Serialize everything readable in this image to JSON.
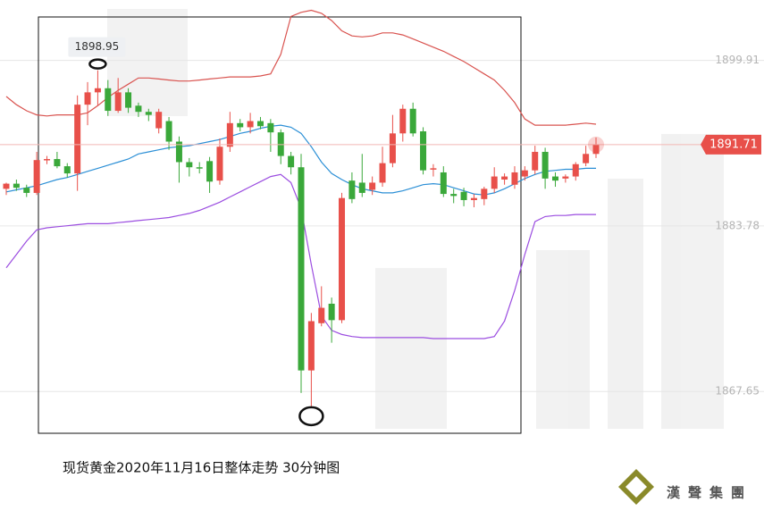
{
  "chart_data": {
    "type": "candlestick",
    "caption": "现货黄金2020年11月16日整体走势  30分钟图",
    "logo": "漢聲集團",
    "up_color": "#e8504a",
    "down_color": "#3aa83a",
    "ylim": [
      1856,
      1905.8
    ],
    "yticks": [
      1899.91,
      1883.78,
      1867.65
    ],
    "grid": true,
    "open": [
      1887.4,
      1887.9,
      1887.5,
      1887.0,
      1890.2,
      1890.3,
      1889.6,
      1888.9,
      1895.6,
      1896.8,
      1897.2,
      1895.0,
      1896.8,
      1895.5,
      1894.9,
      1893.3,
      1894.0,
      1892.0,
      1890.0,
      1889.5,
      1890.1,
      1888.2,
      1891.5,
      1893.8,
      1893.4,
      1894.0,
      1893.8,
      1892.9,
      1890.6,
      1889.5,
      1869.7,
      1874.3,
      1876.2,
      1874.6,
      1888.2,
      1888.0,
      1887.3,
      1888.0,
      1889.9,
      1892.8,
      1895.2,
      1893.0,
      1889.3,
      1889.0,
      1886.9,
      1887.1,
      1886.3,
      1886.4,
      1887.4,
      1888.3,
      1887.8,
      1888.6,
      1889.2,
      1891.0,
      1888.6,
      1888.4,
      1888.6,
      1889.9,
      1890.8
    ],
    "high": [
      1888.0,
      1888.3,
      1887.8,
      1891.0,
      1890.6,
      1891.0,
      1889.9,
      1896.5,
      1897.8,
      1898.95,
      1898.0,
      1898.2,
      1897.2,
      1895.8,
      1895.2,
      1895.2,
      1894.4,
      1892.5,
      1890.4,
      1890.0,
      1890.5,
      1892.3,
      1894.9,
      1894.2,
      1894.8,
      1894.4,
      1894.2,
      1893.2,
      1891.0,
      1890.8,
      1875.3,
      1877.9,
      1876.8,
      1887.0,
      1889.0,
      1890.8,
      1888.6,
      1891.5,
      1894.6,
      1895.6,
      1895.8,
      1893.4,
      1889.8,
      1889.6,
      1887.4,
      1887.5,
      1886.9,
      1887.6,
      1889.5,
      1888.9,
      1889.6,
      1889.6,
      1891.6,
      1891.4,
      1889.0,
      1888.8,
      1890.0,
      1891.6,
      1892.4
    ],
    "low": [
      1886.8,
      1887.2,
      1886.6,
      1886.8,
      1889.8,
      1889.4,
      1888.5,
      1887.2,
      1893.6,
      1895.5,
      1894.5,
      1894.8,
      1894.8,
      1894.4,
      1894.0,
      1892.8,
      1891.2,
      1888.0,
      1888.6,
      1888.9,
      1887.0,
      1887.8,
      1891.0,
      1893.0,
      1892.8,
      1893.2,
      1891.0,
      1889.8,
      1888.8,
      1867.5,
      1866.2,
      1874.0,
      1872.4,
      1874.3,
      1886.0,
      1886.6,
      1886.8,
      1887.6,
      1889.5,
      1892.0,
      1892.5,
      1888.8,
      1888.6,
      1886.6,
      1886.0,
      1885.7,
      1885.6,
      1885.8,
      1887.0,
      1887.8,
      1887.4,
      1888.2,
      1888.8,
      1887.4,
      1887.6,
      1888.0,
      1888.2,
      1889.6,
      1890.4
    ],
    "close": [
      1887.9,
      1887.5,
      1887.0,
      1890.2,
      1890.3,
      1889.6,
      1888.9,
      1895.6,
      1896.8,
      1897.2,
      1895.0,
      1896.8,
      1895.3,
      1894.9,
      1894.6,
      1894.9,
      1892.0,
      1890.0,
      1889.5,
      1889.4,
      1888.1,
      1891.5,
      1893.8,
      1893.4,
      1894.0,
      1893.5,
      1892.9,
      1890.6,
      1889.5,
      1869.7,
      1874.5,
      1875.8,
      1874.6,
      1886.5,
      1886.4,
      1887.0,
      1888.0,
      1889.9,
      1892.8,
      1895.2,
      1892.8,
      1889.2,
      1889.4,
      1886.9,
      1886.7,
      1886.3,
      1886.5,
      1887.4,
      1888.6,
      1888.6,
      1889.0,
      1889.2,
      1891.0,
      1888.4,
      1888.2,
      1888.6,
      1889.8,
      1890.8,
      1891.71
    ],
    "series": [
      {
        "color": "#d9534f",
        "values": [
          1896.4,
          1895.6,
          1895.0,
          1894.6,
          1894.5,
          1894.6,
          1894.6,
          1894.6,
          1894.8,
          1895.5,
          1896.3,
          1897.0,
          1897.6,
          1898.2,
          1898.2,
          1898.1,
          1898.0,
          1897.9,
          1897.9,
          1898.0,
          1898.1,
          1898.2,
          1898.3,
          1898.3,
          1898.3,
          1898.4,
          1898.6,
          1900.5,
          1904.2,
          1904.6,
          1904.8,
          1904.5,
          1903.8,
          1902.8,
          1902.3,
          1902.2,
          1902.3,
          1902.6,
          1902.6,
          1902.4,
          1902.0,
          1901.6,
          1901.2,
          1900.8,
          1900.3,
          1899.8,
          1899.2,
          1898.6,
          1898.0,
          1897.0,
          1895.8,
          1894.2,
          1893.6,
          1893.6,
          1893.6,
          1893.6,
          1893.7,
          1893.8,
          1893.7
        ]
      },
      {
        "color": "#2b8fd6",
        "values": [
          1887.1,
          1887.3,
          1887.5,
          1887.7,
          1888.0,
          1888.3,
          1888.5,
          1888.8,
          1889.1,
          1889.4,
          1889.7,
          1890.0,
          1890.3,
          1890.8,
          1891.0,
          1891.2,
          1891.4,
          1891.5,
          1891.6,
          1891.8,
          1892.0,
          1892.2,
          1892.5,
          1892.8,
          1893.0,
          1893.3,
          1893.5,
          1893.6,
          1893.4,
          1892.8,
          1891.5,
          1890.0,
          1888.9,
          1888.3,
          1887.8,
          1887.4,
          1887.2,
          1887.0,
          1887.0,
          1887.2,
          1887.5,
          1887.8,
          1887.9,
          1887.8,
          1887.5,
          1887.2,
          1886.9,
          1886.8,
          1887.0,
          1887.4,
          1887.9,
          1888.4,
          1888.8,
          1889.1,
          1889.2,
          1889.3,
          1889.3,
          1889.4,
          1889.4
        ]
      },
      {
        "color": "#9b4de0",
        "values": [
          1879.7,
          1881.0,
          1882.3,
          1883.4,
          1883.6,
          1883.7,
          1883.8,
          1883.9,
          1884.0,
          1884.0,
          1884.0,
          1884.1,
          1884.2,
          1884.3,
          1884.4,
          1884.5,
          1884.6,
          1884.8,
          1885.0,
          1885.3,
          1885.7,
          1886.1,
          1886.6,
          1887.1,
          1887.6,
          1888.1,
          1888.6,
          1888.8,
          1888.0,
          1885.5,
          1880.0,
          1875.0,
          1873.6,
          1873.2,
          1873.0,
          1872.9,
          1872.9,
          1872.9,
          1872.9,
          1872.9,
          1872.9,
          1872.9,
          1872.8,
          1872.8,
          1872.8,
          1872.8,
          1872.8,
          1872.8,
          1873.0,
          1874.5,
          1877.5,
          1881.0,
          1884.2,
          1884.7,
          1884.8,
          1884.8,
          1884.9,
          1884.9,
          1884.9
        ]
      }
    ]
  }
}
